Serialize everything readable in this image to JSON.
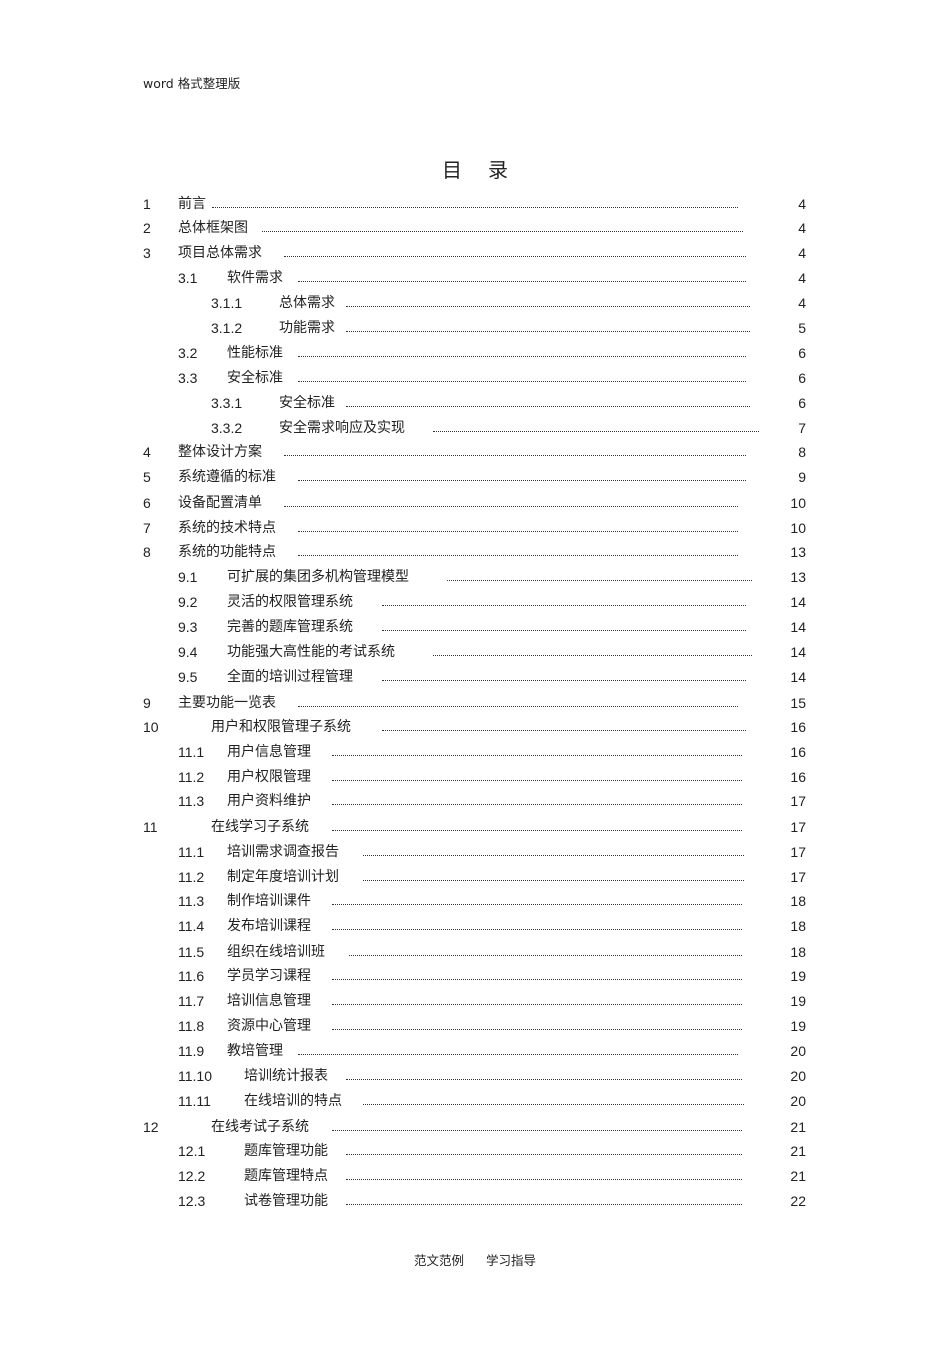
{
  "header": {
    "text": "word 格式整理版"
  },
  "toc_title": "目录",
  "toc": [
    {
      "num": "1",
      "title": "前言",
      "page": "4"
    },
    {
      "num": "2",
      "title": "总体框架图",
      "page": "4"
    },
    {
      "num": "3",
      "title": "项目总体需求",
      "page": "4"
    },
    {
      "num": "3.1",
      "title": "软件需求",
      "page": "4"
    },
    {
      "num": "3.1.1",
      "title": "总体需求",
      "page": "4"
    },
    {
      "num": "3.1.2",
      "title": "功能需求",
      "page": "5"
    },
    {
      "num": "3.2",
      "title": "性能标准",
      "page": "6"
    },
    {
      "num": "3.3",
      "title": "安全标准",
      "page": "6"
    },
    {
      "num": "3.3.1",
      "title": "安全标准",
      "page": "6"
    },
    {
      "num": "3.3.2",
      "title": "安全需求响应及实现",
      "page": "7"
    },
    {
      "num": "4",
      "title": "整体设计方案",
      "page": "8"
    },
    {
      "num": "5",
      "title": "系统遵循的标准",
      "page": "9"
    },
    {
      "num": "6",
      "title": "设备配置清单",
      "page": "10"
    },
    {
      "num": "7",
      "title": "系统的技术特点",
      "page": "10"
    },
    {
      "num": "8",
      "title": "系统的功能特点",
      "page": "13"
    },
    {
      "num": "9.1",
      "title": "可扩展的集团多机构管理模型",
      "page": "13"
    },
    {
      "num": "9.2",
      "title": "灵活的权限管理系统",
      "page": "14"
    },
    {
      "num": "9.3",
      "title": "完善的题库管理系统",
      "page": "14"
    },
    {
      "num": "9.4",
      "title": "功能强大高性能的考试系统",
      "page": "14"
    },
    {
      "num": "9.5",
      "title": "全面的培训过程管理",
      "page": "14"
    },
    {
      "num": "9",
      "title": "主要功能一览表",
      "page": "15"
    },
    {
      "num": "10",
      "title": "用户和权限管理子系统",
      "page": "16"
    },
    {
      "num": "11.1",
      "title": "用户信息管理",
      "page": "16"
    },
    {
      "num": "11.2",
      "title": "用户权限管理",
      "page": "16"
    },
    {
      "num": "11.3",
      "title": "用户资料维护",
      "page": "17"
    },
    {
      "num": "11",
      "title": "在线学习子系统",
      "page": "17"
    },
    {
      "num": "11.1",
      "title": "培训需求调查报告",
      "page": "17"
    },
    {
      "num": "11.2",
      "title": "制定年度培训计划",
      "page": "17"
    },
    {
      "num": "11.3",
      "title": "制作培训课件",
      "page": "18"
    },
    {
      "num": "11.4",
      "title": "发布培训课程",
      "page": "18"
    },
    {
      "num": "11.5",
      "title": "组织在线培训班",
      "page": "18"
    },
    {
      "num": "11.6",
      "title": "学员学习课程",
      "page": "19"
    },
    {
      "num": "11.7",
      "title": "培训信息管理",
      "page": "19"
    },
    {
      "num": "11.8",
      "title": "资源中心管理",
      "page": "19"
    },
    {
      "num": "11.9",
      "title": "教培管理",
      "page": "20"
    },
    {
      "num": "11.10",
      "title": "培训统计报表",
      "page": "20"
    },
    {
      "num": "11.11",
      "title": "在线培训的特点",
      "page": "20"
    },
    {
      "num": "12",
      "title": "在线考试子系统",
      "page": "21"
    },
    {
      "num": "12.1",
      "title": "题库管理功能",
      "page": "21"
    },
    {
      "num": "12.2",
      "title": "题库管理特点",
      "page": "21"
    },
    {
      "num": "12.3",
      "title": "试卷管理功能",
      "page": "22"
    }
  ],
  "footer": {
    "text": "范文范例 学习指导"
  }
}
